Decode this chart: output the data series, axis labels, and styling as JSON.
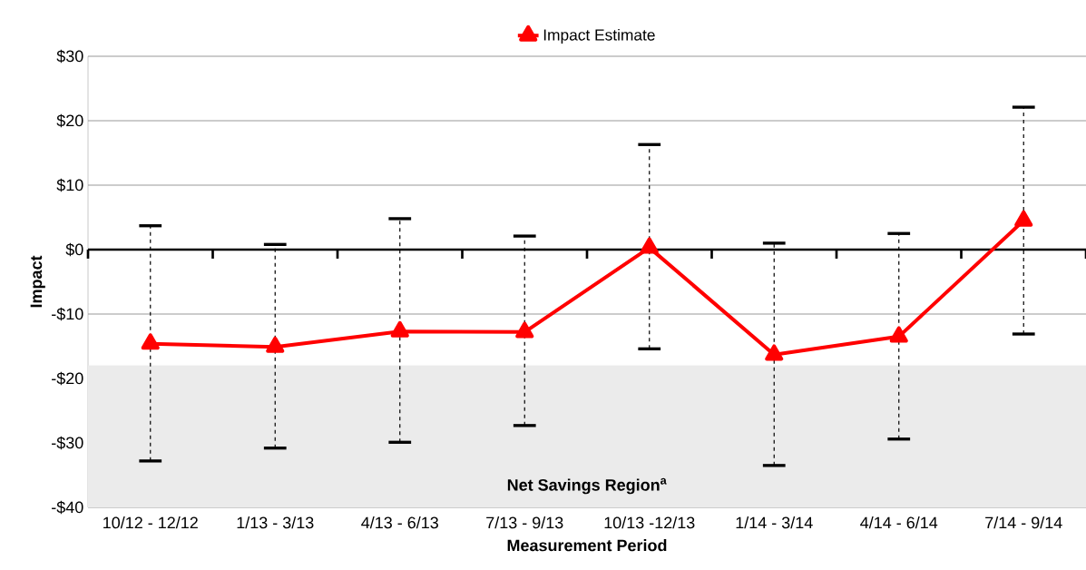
{
  "chart_data": {
    "type": "line",
    "xlabel": "Measurement Period",
    "ylabel": "Impact",
    "categories": [
      "10/12 - 12/12",
      "1/13 - 3/13",
      "4/13 - 6/13",
      "7/13 - 9/13",
      "10/13 -12/13",
      "1/14 - 3/14",
      "4/14 - 6/14",
      "7/14 - 9/14"
    ],
    "series": [
      {
        "name": "Impact Estimate",
        "color": "#ff0000",
        "values": [
          -14.6,
          -15.1,
          -12.7,
          -12.8,
          0.3,
          -16.3,
          -13.5,
          4.5
        ],
        "errors": [
          [
            -32.8,
            3.7
          ],
          [
            -30.8,
            0.8
          ],
          [
            -29.9,
            4.8
          ],
          [
            -27.3,
            2.1
          ],
          [
            -15.4,
            16.3
          ],
          [
            -33.5,
            1.0
          ],
          [
            -29.4,
            2.5
          ],
          [
            -13.1,
            22.1
          ]
        ]
      }
    ],
    "ylim": [
      -40,
      30
    ],
    "yticks": [
      {
        "value": -40,
        "label": "-$40"
      },
      {
        "value": -30,
        "label": "-$30"
      },
      {
        "value": -20,
        "label": "-$20"
      },
      {
        "value": -10,
        "label": "-$10"
      },
      {
        "value": 0,
        "label": "$0"
      },
      {
        "value": 10,
        "label": "$10"
      },
      {
        "value": 20,
        "label": "$20"
      },
      {
        "value": 30,
        "label": "$30"
      }
    ],
    "bands": [
      {
        "axis": "y",
        "from": -40,
        "to": -18,
        "label": "Net Savings Region$^{a}$",
        "color": "#ebebeb"
      }
    ],
    "ref_lines": [
      {
        "axis": "y",
        "value": 0,
        "color": "#000000"
      }
    ],
    "grid": "y",
    "legend": "top",
    "marker": "triangle",
    "line_style": "solid"
  }
}
